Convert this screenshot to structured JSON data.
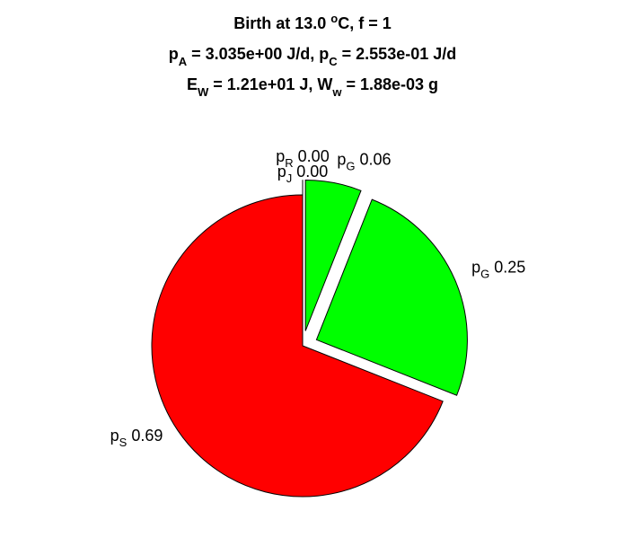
{
  "chart_data": {
    "type": "pie",
    "title": [
      [
        {
          "t": "Birth at 13.0 "
        },
        {
          "t": "o",
          "pos": "sup"
        },
        {
          "t": "C, f = 1"
        }
      ],
      [
        {
          "t": "p"
        },
        {
          "t": "A",
          "pos": "sub"
        },
        {
          "t": " = 3.035e+00 J/d, p"
        },
        {
          "t": "C",
          "pos": "sub"
        },
        {
          "t": " = 2.553e-01 J/d"
        }
      ],
      [
        {
          "t": "E"
        },
        {
          "t": "W",
          "pos": "sub"
        },
        {
          "t": " = 1.21e+01 J, W"
        },
        {
          "t": "w",
          "pos": "sub"
        },
        {
          "t": " = 1.88e-03 g"
        }
      ]
    ],
    "slices": [
      {
        "name": "p",
        "sub": "S",
        "value": 0.69,
        "value_label": "0.69",
        "color": "#ff0000",
        "explode": false
      },
      {
        "name": "p",
        "sub": "G",
        "value": 0.25,
        "value_label": "0.25",
        "color": "#00ff00",
        "explode": true
      },
      {
        "name": "p",
        "sub": "G",
        "value": 0.06,
        "value_label": "0.06",
        "color": "#00ff00",
        "explode": true
      },
      {
        "name": "p",
        "sub": "R",
        "value": 0,
        "value_label": "0.00",
        "color": "#ffffff",
        "explode": true
      },
      {
        "name": "p",
        "sub": "J",
        "value": 0,
        "value_label": "0.00",
        "color": "#ffffff",
        "explode": false
      }
    ]
  }
}
